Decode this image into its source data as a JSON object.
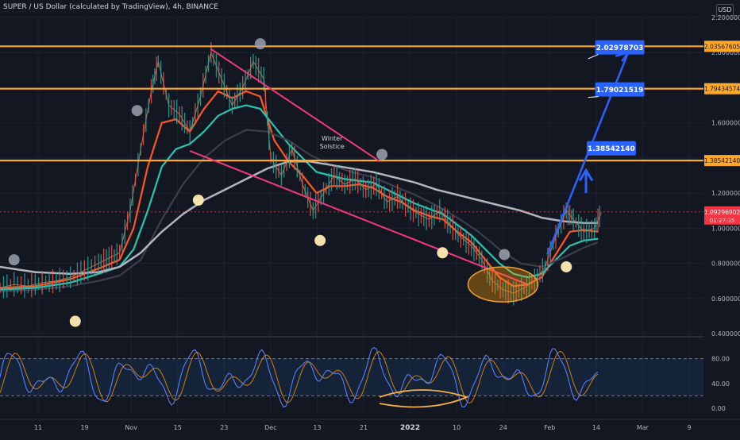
{
  "header": {
    "title": "SUPER / US Dollar (calculated by TradingView), 4h, BINANCE",
    "currency": "USD"
  },
  "chart_data": {
    "type": "candlestick",
    "price_axis": {
      "range": [
        0.4,
        2.2
      ],
      "ticks": [
        "2.20000000",
        "2.00000000",
        "1.80000000",
        "1.60000000",
        "1.40000000",
        "1.20000000",
        "1.00000000",
        "0.80000000",
        "0.60000000",
        "0.40000000"
      ]
    },
    "time_axis": {
      "ticks": [
        "11",
        "19",
        "Nov",
        "15",
        "23",
        "Dec",
        "13",
        "21",
        "2022",
        "10",
        "24",
        "Feb",
        "14",
        "Mar",
        "9"
      ],
      "bold_tick": "2022"
    },
    "horizontal_levels": [
      {
        "price": 2.03567605,
        "label": "2.03567605"
      },
      {
        "price": 1.79434574,
        "label": "1.79434574"
      },
      {
        "price": 1.3854214,
        "label": "1.38542140"
      }
    ],
    "current_price": {
      "price": 1.0929,
      "label": "1.09296902",
      "sub_label": "01:27:35"
    },
    "targets": [
      {
        "price": 2.02978703,
        "label": "2.02978703"
      },
      {
        "price": 1.79021519,
        "label": "1.79021519"
      },
      {
        "price": 1.3854214,
        "label": "1.38542140"
      }
    ],
    "annotation": {
      "text": "Winter Solstice"
    },
    "price_path": [
      [
        0.0,
        0.66
      ],
      [
        0.02,
        0.68
      ],
      [
        0.04,
        0.67
      ],
      [
        0.06,
        0.69
      ],
      [
        0.08,
        0.7
      ],
      [
        0.1,
        0.72
      ],
      [
        0.12,
        0.76
      ],
      [
        0.14,
        0.8
      ],
      [
        0.155,
        0.83
      ],
      [
        0.17,
        0.86
      ],
      [
        0.185,
        1.1
      ],
      [
        0.2,
        1.45
      ],
      [
        0.215,
        1.78
      ],
      [
        0.225,
        1.95
      ],
      [
        0.24,
        1.7
      ],
      [
        0.255,
        1.65
      ],
      [
        0.27,
        1.55
      ],
      [
        0.285,
        1.75
      ],
      [
        0.3,
        2.0
      ],
      [
        0.315,
        1.85
      ],
      [
        0.33,
        1.7
      ],
      [
        0.345,
        1.8
      ],
      [
        0.36,
        1.95
      ],
      [
        0.375,
        1.85
      ],
      [
        0.385,
        1.4
      ],
      [
        0.4,
        1.3
      ],
      [
        0.415,
        1.45
      ],
      [
        0.43,
        1.25
      ],
      [
        0.445,
        1.1
      ],
      [
        0.46,
        1.2
      ],
      [
        0.475,
        1.3
      ],
      [
        0.49,
        1.25
      ],
      [
        0.505,
        1.28
      ],
      [
        0.52,
        1.22
      ],
      [
        0.535,
        1.25
      ],
      [
        0.55,
        1.15
      ],
      [
        0.565,
        1.18
      ],
      [
        0.58,
        1.12
      ],
      [
        0.595,
        1.08
      ],
      [
        0.61,
        1.05
      ],
      [
        0.625,
        1.1
      ],
      [
        0.64,
        1.02
      ],
      [
        0.655,
        0.95
      ],
      [
        0.67,
        0.9
      ],
      [
        0.685,
        0.82
      ],
      [
        0.7,
        0.7
      ],
      [
        0.715,
        0.65
      ],
      [
        0.73,
        0.63
      ],
      [
        0.745,
        0.66
      ],
      [
        0.76,
        0.7
      ],
      [
        0.775,
        0.78
      ],
      [
        0.79,
        0.95
      ],
      [
        0.805,
        1.1
      ],
      [
        0.815,
        1.05
      ],
      [
        0.83,
        0.98
      ],
      [
        0.845,
        1.0
      ],
      [
        0.855,
        1.09
      ]
    ],
    "moving_averages": [
      {
        "color": "#ff5722",
        "points": [
          [
            0.0,
            0.66
          ],
          [
            0.05,
            0.67
          ],
          [
            0.1,
            0.71
          ],
          [
            0.14,
            0.77
          ],
          [
            0.17,
            0.82
          ],
          [
            0.19,
            1.0
          ],
          [
            0.21,
            1.35
          ],
          [
            0.23,
            1.6
          ],
          [
            0.25,
            1.62
          ],
          [
            0.27,
            1.55
          ],
          [
            0.29,
            1.68
          ],
          [
            0.31,
            1.78
          ],
          [
            0.33,
            1.74
          ],
          [
            0.35,
            1.78
          ],
          [
            0.37,
            1.75
          ],
          [
            0.39,
            1.5
          ],
          [
            0.41,
            1.38
          ],
          [
            0.43,
            1.3
          ],
          [
            0.45,
            1.2
          ],
          [
            0.47,
            1.24
          ],
          [
            0.49,
            1.24
          ],
          [
            0.51,
            1.25
          ],
          [
            0.53,
            1.23
          ],
          [
            0.55,
            1.18
          ],
          [
            0.57,
            1.15
          ],
          [
            0.59,
            1.1
          ],
          [
            0.61,
            1.07
          ],
          [
            0.63,
            1.05
          ],
          [
            0.65,
            0.98
          ],
          [
            0.67,
            0.92
          ],
          [
            0.69,
            0.82
          ],
          [
            0.71,
            0.72
          ],
          [
            0.73,
            0.67
          ],
          [
            0.75,
            0.68
          ],
          [
            0.77,
            0.72
          ],
          [
            0.79,
            0.85
          ],
          [
            0.81,
            0.98
          ],
          [
            0.83,
            0.99
          ],
          [
            0.85,
            0.98
          ]
        ]
      },
      {
        "color": "#26c6b0",
        "points": [
          [
            0.0,
            0.65
          ],
          [
            0.05,
            0.66
          ],
          [
            0.1,
            0.69
          ],
          [
            0.14,
            0.74
          ],
          [
            0.17,
            0.78
          ],
          [
            0.19,
            0.88
          ],
          [
            0.21,
            1.1
          ],
          [
            0.23,
            1.35
          ],
          [
            0.25,
            1.45
          ],
          [
            0.27,
            1.48
          ],
          [
            0.29,
            1.55
          ],
          [
            0.31,
            1.64
          ],
          [
            0.33,
            1.68
          ],
          [
            0.35,
            1.7
          ],
          [
            0.37,
            1.68
          ],
          [
            0.39,
            1.58
          ],
          [
            0.41,
            1.48
          ],
          [
            0.43,
            1.4
          ],
          [
            0.45,
            1.32
          ],
          [
            0.47,
            1.3
          ],
          [
            0.49,
            1.28
          ],
          [
            0.51,
            1.27
          ],
          [
            0.53,
            1.26
          ],
          [
            0.55,
            1.22
          ],
          [
            0.57,
            1.18
          ],
          [
            0.59,
            1.14
          ],
          [
            0.61,
            1.11
          ],
          [
            0.63,
            1.08
          ],
          [
            0.65,
            1.02
          ],
          [
            0.67,
            0.96
          ],
          [
            0.69,
            0.88
          ],
          [
            0.71,
            0.8
          ],
          [
            0.73,
            0.74
          ],
          [
            0.75,
            0.72
          ],
          [
            0.77,
            0.74
          ],
          [
            0.79,
            0.82
          ],
          [
            0.81,
            0.9
          ],
          [
            0.83,
            0.93
          ],
          [
            0.85,
            0.94
          ]
        ]
      },
      {
        "color": "#3a3f4b",
        "points": [
          [
            0.0,
            0.64
          ],
          [
            0.05,
            0.65
          ],
          [
            0.1,
            0.67
          ],
          [
            0.14,
            0.7
          ],
          [
            0.17,
            0.73
          ],
          [
            0.2,
            0.82
          ],
          [
            0.23,
            1.05
          ],
          [
            0.26,
            1.25
          ],
          [
            0.29,
            1.4
          ],
          [
            0.32,
            1.5
          ],
          [
            0.35,
            1.56
          ],
          [
            0.38,
            1.55
          ],
          [
            0.41,
            1.5
          ],
          [
            0.44,
            1.42
          ],
          [
            0.47,
            1.36
          ],
          [
            0.5,
            1.32
          ],
          [
            0.53,
            1.29
          ],
          [
            0.56,
            1.24
          ],
          [
            0.59,
            1.19
          ],
          [
            0.62,
            1.13
          ],
          [
            0.65,
            1.06
          ],
          [
            0.68,
            0.98
          ],
          [
            0.71,
            0.88
          ],
          [
            0.74,
            0.8
          ],
          [
            0.77,
            0.78
          ],
          [
            0.8,
            0.83
          ],
          [
            0.83,
            0.89
          ],
          [
            0.85,
            0.92
          ]
        ]
      },
      {
        "color": "#b2b5be",
        "points": [
          [
            0.0,
            0.78
          ],
          [
            0.05,
            0.75
          ],
          [
            0.1,
            0.74
          ],
          [
            0.14,
            0.75
          ],
          [
            0.17,
            0.78
          ],
          [
            0.2,
            0.86
          ],
          [
            0.23,
            0.98
          ],
          [
            0.26,
            1.08
          ],
          [
            0.29,
            1.16
          ],
          [
            0.32,
            1.22
          ],
          [
            0.35,
            1.28
          ],
          [
            0.38,
            1.34
          ],
          [
            0.41,
            1.38
          ],
          [
            0.44,
            1.38
          ],
          [
            0.47,
            1.36
          ],
          [
            0.5,
            1.34
          ],
          [
            0.53,
            1.32
          ],
          [
            0.56,
            1.29
          ],
          [
            0.59,
            1.26
          ],
          [
            0.62,
            1.22
          ],
          [
            0.65,
            1.19
          ],
          [
            0.68,
            1.16
          ],
          [
            0.71,
            1.13
          ],
          [
            0.74,
            1.1
          ],
          [
            0.77,
            1.06
          ],
          [
            0.8,
            1.04
          ],
          [
            0.83,
            1.03
          ],
          [
            0.85,
            1.03
          ]
        ]
      }
    ],
    "oscillator": {
      "axis": {
        "range": [
          0,
          100
        ],
        "ticks": [
          "80.00",
          "40.00",
          "0.00"
        ],
        "levels": [
          80,
          20
        ]
      }
    }
  }
}
